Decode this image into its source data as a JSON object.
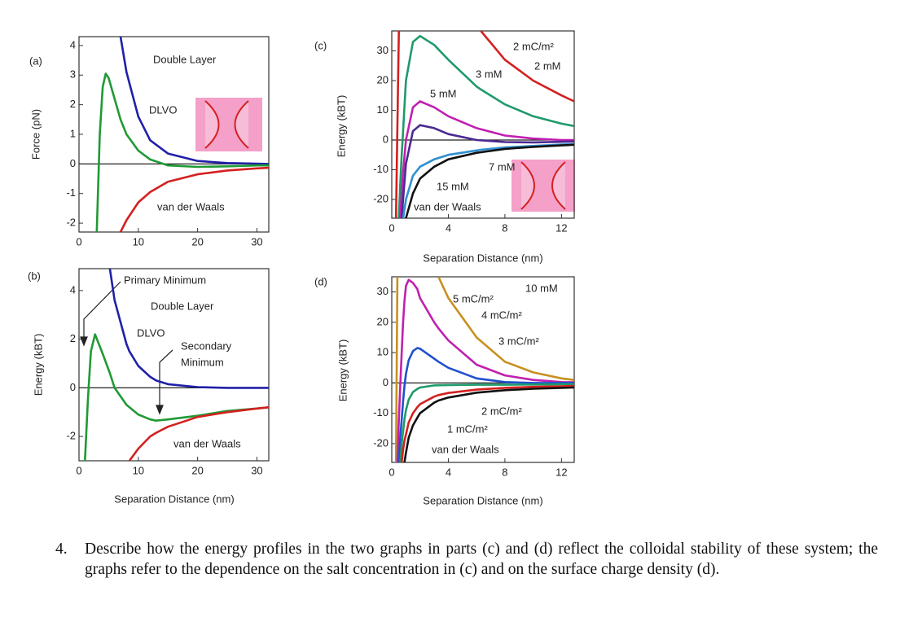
{
  "chart_data": [
    {
      "type": "line",
      "panel_label": "(a)",
      "y_label": "Force (pN)",
      "labels_colored": true,
      "xlim": [
        0,
        32
      ],
      "ylim": [
        -2.3,
        4.3
      ],
      "xticks": [
        0,
        10,
        20,
        30
      ],
      "yticks": [
        -2,
        -1,
        0,
        1,
        2,
        3,
        4
      ],
      "x": [
        3,
        3.5,
        4,
        4.5,
        5,
        6,
        7,
        8,
        10,
        12,
        15,
        20,
        25,
        30,
        32
      ],
      "series": [
        {
          "name": "Double Layer",
          "color": "#2020a8",
          "values": [
            null,
            null,
            null,
            null,
            null,
            null,
            4.3,
            3.1,
            1.6,
            0.8,
            0.35,
            0.1,
            0.03,
            0.01,
            0
          ]
        },
        {
          "name": "DLVO",
          "color": "#1f9a35",
          "values": [
            -2.3,
            1.0,
            2.6,
            3.05,
            2.9,
            2.2,
            1.5,
            1.0,
            0.45,
            0.15,
            -0.05,
            -0.1,
            -0.08,
            -0.05,
            -0.05
          ]
        },
        {
          "name": "van der Waals",
          "color": "#d42020",
          "values": [
            null,
            null,
            null,
            null,
            null,
            null,
            -2.3,
            -1.9,
            -1.3,
            -0.95,
            -0.6,
            -0.35,
            -0.22,
            -0.15,
            -0.13
          ]
        }
      ]
    },
    {
      "type": "line",
      "panel_label": "(b)",
      "y_label": "Energy (kBT)",
      "x_label": "Separation Distance (nm)",
      "labels_colored": true,
      "annotations": [
        "Primary Minimum",
        "Secondary",
        "Minimum"
      ],
      "xlim": [
        0,
        32
      ],
      "ylim": [
        -3,
        4.9
      ],
      "xticks": [
        0,
        10,
        20,
        30
      ],
      "yticks": [
        -2,
        0,
        2,
        4
      ],
      "x": [
        1,
        1.5,
        2,
        2.7,
        4,
        5.2,
        6,
        8,
        8.5,
        10,
        12,
        13,
        15,
        20,
        25,
        30,
        32
      ],
      "series": [
        {
          "name": "Double Layer",
          "color": "#2020a8",
          "values": [
            null,
            null,
            null,
            null,
            null,
            4.9,
            3.6,
            1.8,
            1.5,
            0.9,
            0.45,
            0.3,
            0.15,
            0.03,
            0,
            0,
            0
          ]
        },
        {
          "name": "DLVO",
          "color": "#1f9a35",
          "values": [
            -3,
            -0.5,
            1.5,
            2.2,
            1.4,
            0.6,
            0,
            -0.7,
            -0.8,
            -1.1,
            -1.3,
            -1.35,
            -1.3,
            -1.15,
            -0.95,
            -0.85,
            -0.8
          ]
        },
        {
          "name": "van der Waals",
          "color": "#d42020",
          "values": [
            null,
            null,
            null,
            null,
            null,
            null,
            null,
            null,
            -3,
            -2.5,
            -2.0,
            -1.85,
            -1.6,
            -1.2,
            -1.0,
            -0.85,
            -0.8
          ]
        }
      ]
    },
    {
      "type": "line",
      "panel_label": "(c)",
      "y_label": "Energy (kBT)",
      "x_label": "Separation Distance (nm)",
      "labels_colored": false,
      "annotations": [
        "2 mC/m²"
      ],
      "xlim": [
        0,
        12.9
      ],
      "ylim": [
        -26.3,
        36.7
      ],
      "xticks": [
        0,
        4,
        8,
        12
      ],
      "yticks": [
        -20,
        -10,
        0,
        10,
        20,
        30
      ],
      "x": [
        0.3,
        0.5,
        0.6,
        0.7,
        0.8,
        1,
        1.5,
        2,
        3,
        4,
        6,
        6.3,
        8,
        10,
        12,
        12.9
      ],
      "series": [
        {
          "name": "2 mM",
          "color": "#d42020",
          "values": [
            -26.3,
            36.7,
            null,
            null,
            null,
            null,
            null,
            null,
            null,
            null,
            null,
            36.7,
            27,
            20,
            15,
            13
          ]
        },
        {
          "name": "3 mM",
          "color": "#1f9a6a",
          "values": [
            null,
            -26.3,
            -15,
            -5,
            3,
            20,
            33,
            35,
            32,
            27,
            18,
            17,
            12,
            8,
            5.5,
            4.7
          ]
        },
        {
          "name": "5 mM",
          "color": "#c020b0",
          "values": [
            null,
            null,
            -26.3,
            -18,
            -11,
            0,
            11,
            13,
            11,
            8,
            4,
            3.6,
            1.5,
            0.5,
            0,
            0
          ]
        },
        {
          "name": "7 mM",
          "color": "#4a2a90",
          "values": [
            null,
            null,
            null,
            -26.3,
            -20,
            -8,
            3,
            5,
            4,
            2,
            0,
            -0.1,
            -0.7,
            -0.8,
            -0.6,
            -0.5
          ]
        },
        {
          "name": "15 mM",
          "color": "#3090d0",
          "values": [
            null,
            null,
            null,
            null,
            -26.3,
            -20,
            -12,
            -9,
            -6.5,
            -5,
            -3.5,
            -3.3,
            -2.5,
            -2,
            -1.5,
            -1.4
          ]
        },
        {
          "name": "van der Waals",
          "color": "#111111",
          "values": [
            null,
            null,
            null,
            null,
            null,
            -26.3,
            -18,
            -13,
            -9,
            -6.5,
            -4.3,
            -4.1,
            -3,
            -2.3,
            -1.8,
            -1.6
          ]
        }
      ]
    },
    {
      "type": "line",
      "panel_label": "(d)",
      "y_label": "Energy (kBT)",
      "x_label": "Separation Distance (nm)",
      "labels_colored": false,
      "annotations": [
        "10 mM"
      ],
      "xlim": [
        0,
        12.9
      ],
      "ylim": [
        -26.2,
        35
      ],
      "xticks": [
        0,
        4,
        8,
        12
      ],
      "yticks": [
        -20,
        -10,
        0,
        10,
        20,
        30
      ],
      "x": [
        0.3,
        0.4,
        0.5,
        0.6,
        0.7,
        0.8,
        0.9,
        1,
        1.2,
        1.5,
        1.8,
        2,
        3,
        3.3,
        4,
        6,
        8,
        10,
        12,
        12.9
      ],
      "series": [
        {
          "name": "5 mC/m²",
          "color": "#c89020",
          "values": [
            -26.2,
            35,
            null,
            null,
            null,
            null,
            null,
            null,
            null,
            null,
            null,
            null,
            null,
            35,
            28,
            15,
            7,
            3.5,
            1.5,
            1
          ]
        },
        {
          "name": "4 mC/m²",
          "color": "#c020b0",
          "values": [
            null,
            -26.2,
            -12,
            -1,
            10,
            20,
            27,
            32,
            34,
            33,
            31,
            28,
            20,
            18,
            14,
            6,
            2.5,
            1,
            0.3,
            0.2
          ]
        },
        {
          "name": "3 mC/m²",
          "color": "#2050d0",
          "values": [
            null,
            null,
            -26.2,
            -18,
            -12,
            -6,
            -1,
            3,
            7.5,
            10.5,
            11.5,
            11.3,
            8,
            7,
            5,
            1.5,
            0.3,
            0,
            0,
            0
          ]
        },
        {
          "name": "2 mC/m²",
          "color": "#1f9a6a",
          "values": [
            null,
            null,
            null,
            -26.2,
            -20,
            -16,
            -12,
            -9,
            -5.5,
            -3,
            -2,
            -1.5,
            -0.8,
            -0.75,
            -0.7,
            -0.6,
            -0.6,
            -0.5,
            -0.4,
            -0.4
          ]
        },
        {
          "name": "1 mC/m²",
          "color": "#d42020",
          "values": [
            null,
            null,
            null,
            null,
            -26.2,
            -22,
            -19,
            -17,
            -13,
            -10,
            -8,
            -7,
            -4.5,
            -4,
            -3.3,
            -2.2,
            -1.6,
            -1.3,
            -1.1,
            -1
          ]
        },
        {
          "name": "van der Waals",
          "color": "#111111",
          "values": [
            null,
            null,
            null,
            null,
            null,
            null,
            -26.2,
            -23,
            -18,
            -14,
            -11.5,
            -10,
            -6.5,
            -5.8,
            -4.8,
            -3.2,
            -2.4,
            -1.9,
            -1.6,
            -1.5
          ]
        }
      ]
    }
  ],
  "question": {
    "number": "4.",
    "text": "Describe how the energy profiles in the two graphs in parts (c) and (d) reflect the colloidal stability of these system; the graphs refer to the dependence on the salt concentration in (c) and on the surface charge density (d)."
  }
}
